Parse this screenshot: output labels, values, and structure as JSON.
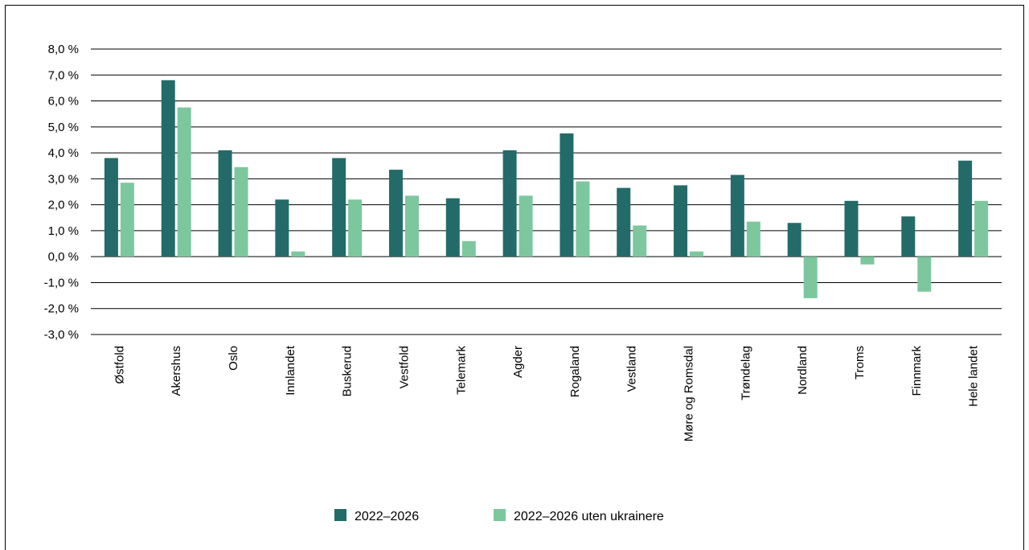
{
  "chart_data": {
    "type": "bar",
    "title": "",
    "xlabel": "",
    "ylabel": "",
    "ylim": [
      -3,
      8
    ],
    "ytick_step": 1,
    "yticks": [
      "8,0 %",
      "7,0 %",
      "6,0 %",
      "5,0 %",
      "4,0 %",
      "3,0 %",
      "2,0 %",
      "1,0 %",
      "0,0 %",
      "-1,0 %",
      "-2,0 %",
      "-3,0 %"
    ],
    "grid": true,
    "legend_position": "bottom",
    "categories": [
      "Østfold",
      "Akershus",
      "Oslo",
      "Innlandet",
      "Buskerud",
      "Vestfold",
      "Telemark",
      "Agder",
      "Rogaland",
      "Vestland",
      "Møre og Romsdal",
      "Trøndelag",
      "Nordland",
      "Troms",
      "Finnmark",
      "Hele landet"
    ],
    "series": [
      {
        "name": "2022–2026",
        "color": "#236b69",
        "values": [
          3.8,
          6.8,
          4.1,
          2.2,
          3.8,
          3.35,
          2.25,
          4.1,
          4.75,
          2.65,
          2.75,
          3.15,
          1.3,
          2.15,
          1.55,
          3.7
        ]
      },
      {
        "name": "2022–2026 uten ukrainere",
        "color": "#7dc79e",
        "values": [
          2.85,
          5.75,
          3.45,
          0.2,
          2.2,
          2.35,
          0.6,
          2.35,
          2.9,
          1.2,
          0.2,
          1.35,
          -1.6,
          -0.3,
          -1.35,
          2.15
        ]
      }
    ]
  }
}
